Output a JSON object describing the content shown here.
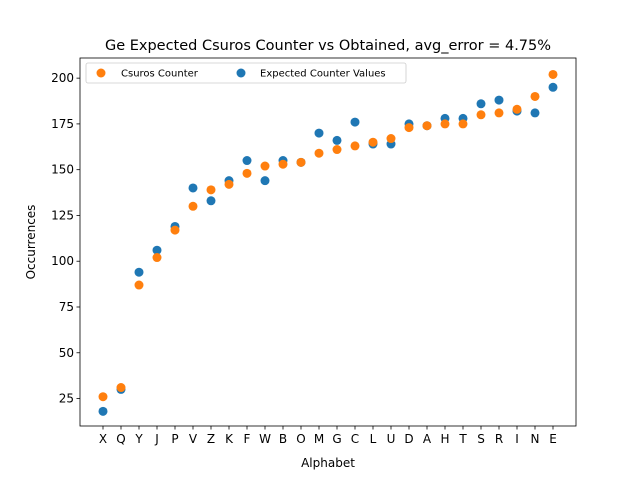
{
  "chart_data": {
    "type": "scatter",
    "title": "Ge Expected Csuros Counter vs Obtained, avg_error = 4.75%",
    "xlabel": "Alphabet",
    "ylabel": "Occurrences",
    "categories": [
      "X",
      "Q",
      "Y",
      "J",
      "P",
      "V",
      "Z",
      "K",
      "F",
      "W",
      "B",
      "O",
      "M",
      "G",
      "C",
      "L",
      "U",
      "D",
      "A",
      "H",
      "T",
      "S",
      "R",
      "I",
      "N",
      "E"
    ],
    "ylim": [
      10,
      211
    ],
    "yticks": [
      25,
      50,
      75,
      100,
      125,
      150,
      175,
      200
    ],
    "grid": false,
    "legend_position": "top-left",
    "series": [
      {
        "name": "Csuros Counter",
        "color": "#ff7f0e",
        "values": [
          26,
          31,
          87,
          102,
          117,
          130,
          139,
          142,
          148,
          152,
          153,
          154,
          159,
          161,
          163,
          165,
          167,
          173,
          174,
          175,
          175,
          180,
          181,
          183,
          190,
          202
        ]
      },
      {
        "name": "Expected Counter Values",
        "color": "#1f77b4",
        "values": [
          18,
          30,
          94,
          106,
          119,
          140,
          133,
          144,
          155,
          144,
          155,
          154,
          170,
          166,
          176,
          164,
          164,
          175,
          174,
          178,
          178,
          186,
          188,
          182,
          181,
          195
        ]
      }
    ]
  }
}
